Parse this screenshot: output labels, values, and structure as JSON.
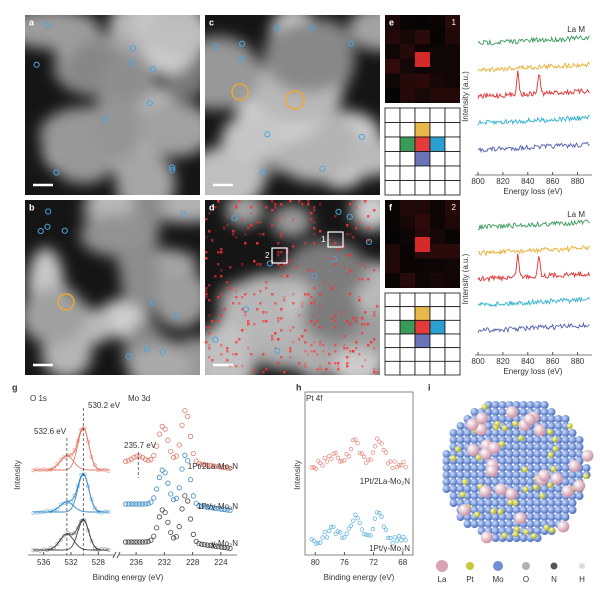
{
  "figure": {
    "panels": {
      "a": "a",
      "b": "b",
      "c": "c",
      "d": "d",
      "e": "e",
      "f": "f",
      "g": "g",
      "h": "h",
      "i": "i"
    },
    "map_indices": [
      "1",
      "2"
    ],
    "d_boxes": [
      "1",
      "2"
    ],
    "eels": [
      {
        "element": "La M",
        "ylabel": "Intensity (a.u.)",
        "xlabel": "Energy loss (eV)",
        "xticks": [
          800,
          820,
          840,
          860,
          880
        ]
      },
      {
        "element": "La M",
        "ylabel": "Intensity (a.u.)",
        "xlabel": "Energy loss (eV)",
        "xticks": [
          800,
          820,
          840,
          860,
          880
        ]
      }
    ],
    "g": {
      "o_title": "O 1s",
      "mo_title": "Mo 3d",
      "peak_main": "530.2 eV",
      "peak_shoulder": "532.6 eV",
      "peak_mo": "235.7 eV",
      "samples": [
        "1Pt/2La-Mo₂N",
        "1Pt/γ-Mo₂N",
        "γ-Mo₂N"
      ],
      "ylabel": "Intensity",
      "xlabel": "Binding energy (eV)",
      "o_xticks": [
        536,
        532,
        528
      ],
      "mo_xticks": [
        236,
        232,
        228,
        224
      ]
    },
    "h": {
      "title": "Pt 4f",
      "samples": [
        "1Pt/2La-Mo₂N",
        "1Pt/γ-Mo₂N"
      ],
      "ylabel": "Intensity",
      "xlabel": "Binding energy (eV)",
      "xticks": [
        80,
        76,
        72,
        68
      ]
    },
    "i": {
      "legend": [
        {
          "name": "La",
          "color": "#d9a3b3"
        },
        {
          "name": "Pt",
          "color": "#c8c83c"
        },
        {
          "name": "Mo",
          "color": "#6f8fd6"
        },
        {
          "name": "O",
          "color": "#b0b0b0"
        },
        {
          "name": "N",
          "color": "#555555"
        },
        {
          "name": "H",
          "color": "#dddddd"
        }
      ]
    }
  }
}
